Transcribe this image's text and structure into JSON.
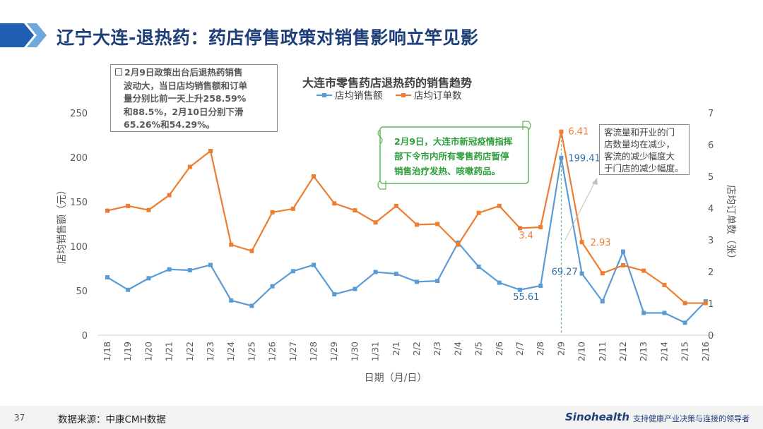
{
  "page": {
    "title": "辽宁大连-退热药：药店停售政策对销售影响立竿见影",
    "page_number": "37",
    "source": "数据来源：中康CMH数据",
    "logo_text": "Sinohealth",
    "tagline": "支持健康产业决策与连接的领导者",
    "accent_color": "#1f3f7a"
  },
  "annotations": {
    "box1_marker": "□",
    "box1_lines": [
      "2月9日政策出台后退热药销售",
      "波动大，当日店均销售额和订单",
      "量分别比前一天上升258.59%",
      "和88.5%，2月10日分别下滑",
      "65.26%和54.29%。"
    ],
    "box2_lines": [
      "2月9日，大连市新冠疫情指挥",
      "部下令市内所有零售药店暂停",
      "销售治疗发热、咳嗽药品。"
    ],
    "box3_lines": [
      "客流量和开业的门",
      "店数量均在减少，",
      "客流的减少幅度大",
      "于门店的减少幅度。"
    ]
  },
  "chart_data": {
    "type": "line",
    "title": "大连市零售药店退热药的销售趋势",
    "xlabel": "日期（月/日）",
    "ylabel": "店均销售额（元）",
    "y2label": "店均订单数（张）",
    "ylim": [
      0,
      250
    ],
    "y2lim": [
      0,
      7
    ],
    "yticks": [
      "0",
      "50",
      "100",
      "150",
      "200",
      "250"
    ],
    "y2ticks": [
      "0",
      "1",
      "2",
      "3",
      "4",
      "5",
      "6",
      "7"
    ],
    "categories": [
      "1/18",
      "1/19",
      "1/20",
      "1/21",
      "1/22",
      "1/23",
      "1/24",
      "1/25",
      "1/26",
      "1/27",
      "1/28",
      "1/29",
      "1/30",
      "1/31",
      "2/1",
      "2/2",
      "2/3",
      "2/4",
      "2/5",
      "2/6",
      "2/7",
      "2/8",
      "2/9",
      "2/10",
      "2/11",
      "2/12",
      "2/13",
      "2/14",
      "2/15",
      "2/16"
    ],
    "series": [
      {
        "name": "店均销售额",
        "axis": "left",
        "color": "#5b9bd5",
        "values": [
          65,
          51,
          64,
          74,
          73,
          79,
          39,
          33,
          55,
          72,
          79,
          46,
          52,
          71,
          69,
          60,
          61,
          104,
          77,
          59,
          51,
          55.61,
          199.41,
          69.27,
          38,
          94,
          25,
          25,
          14,
          38
        ]
      },
      {
        "name": "店均订单数",
        "axis": "right",
        "color": "#ed7d31",
        "values": [
          3.92,
          4.07,
          3.94,
          4.41,
          5.3,
          5.8,
          2.85,
          2.65,
          3.87,
          3.98,
          5.0,
          4.15,
          3.93,
          3.55,
          4.07,
          3.48,
          3.5,
          2.85,
          3.85,
          4.07,
          3.37,
          3.4,
          6.41,
          2.93,
          1.95,
          2.2,
          2.03,
          1.58,
          1.01,
          1.01
        ]
      }
    ],
    "data_labels": [
      {
        "text": "6.41",
        "series": 1,
        "index": 22,
        "color": "#ed7d31"
      },
      {
        "text": "199.41",
        "series": 0,
        "index": 22,
        "color": "#2e6fa8"
      },
      {
        "text": "3.4",
        "series": 1,
        "index": 21,
        "color": "#ed7d31"
      },
      {
        "text": "55.61",
        "series": 0,
        "index": 21,
        "color": "#2e6fa8"
      },
      {
        "text": "69.27",
        "series": 0,
        "index": 23,
        "color": "#2e6fa8"
      },
      {
        "text": "2.93",
        "series": 1,
        "index": 23,
        "color": "#ed7d31"
      }
    ],
    "legend_position": "top"
  }
}
